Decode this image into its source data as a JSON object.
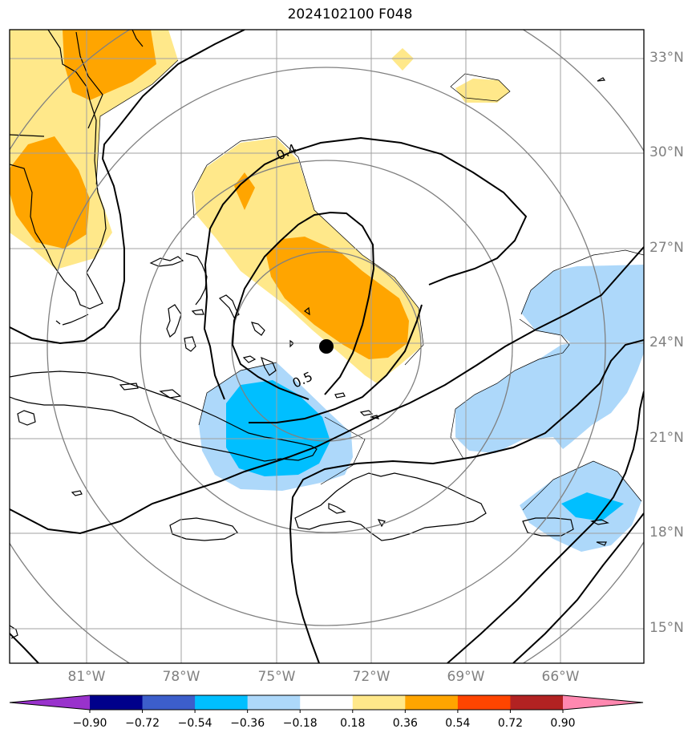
{
  "title": "2024102100 F048",
  "lat_labels": [
    "33°N",
    "30°N",
    "27°N",
    "24°N",
    "21°N",
    "18°N",
    "15°N"
  ],
  "lon_labels": [
    "81°W",
    "78°W",
    "75°W",
    "72°W",
    "69°W",
    "66°W"
  ],
  "contour_labels": [
    "0.4",
    "0.5"
  ],
  "colorbar": {
    "ticks": [
      "−0.90",
      "−0.72",
      "−0.54",
      "−0.36",
      "−0.18",
      "0.18",
      "0.36",
      "0.54",
      "0.72",
      "0.90"
    ],
    "colors": [
      "#9932cc",
      "#00008b",
      "#3c5ecb",
      "#00bfff",
      "#add8fa",
      "#ffffff",
      "#ffe88a",
      "#ffa500",
      "#ff4500",
      "#b22222",
      "#ff88b0"
    ]
  },
  "colors": {
    "light_blue": "#add8fa",
    "deep_sky_blue": "#00bfff",
    "light_yellow": "#ffe88a",
    "orange": "#ffa500",
    "grid": "#a0a0a0",
    "range_rings": "#808080"
  }
}
